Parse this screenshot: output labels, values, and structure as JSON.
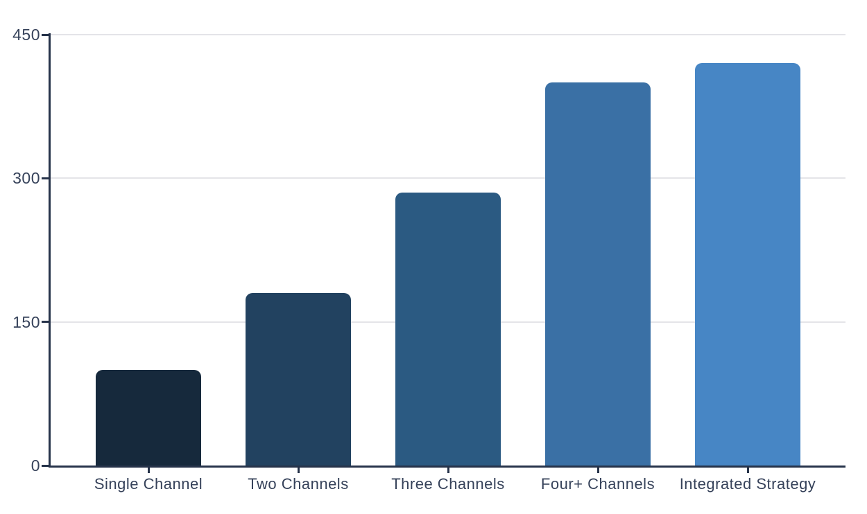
{
  "chart_data": {
    "type": "bar",
    "categories": [
      "Single Channel",
      "Two Channels",
      "Three Channels",
      "Four+ Channels",
      "Integrated Strategy"
    ],
    "values": [
      100,
      180,
      285,
      400,
      420
    ],
    "bar_colors": [
      "#16293c",
      "#224260",
      "#2b5a82",
      "#3a70a5",
      "#4786c5"
    ],
    "title": "",
    "xlabel": "",
    "ylabel": "",
    "ylim": [
      0,
      450
    ],
    "yticks": [
      0,
      150,
      300,
      450
    ],
    "grid": true,
    "legend": false
  },
  "colors": {
    "background": "#ffffff",
    "axis": "#26334a",
    "tick_label": "#36425a",
    "gridline": "#e4e4e8"
  }
}
